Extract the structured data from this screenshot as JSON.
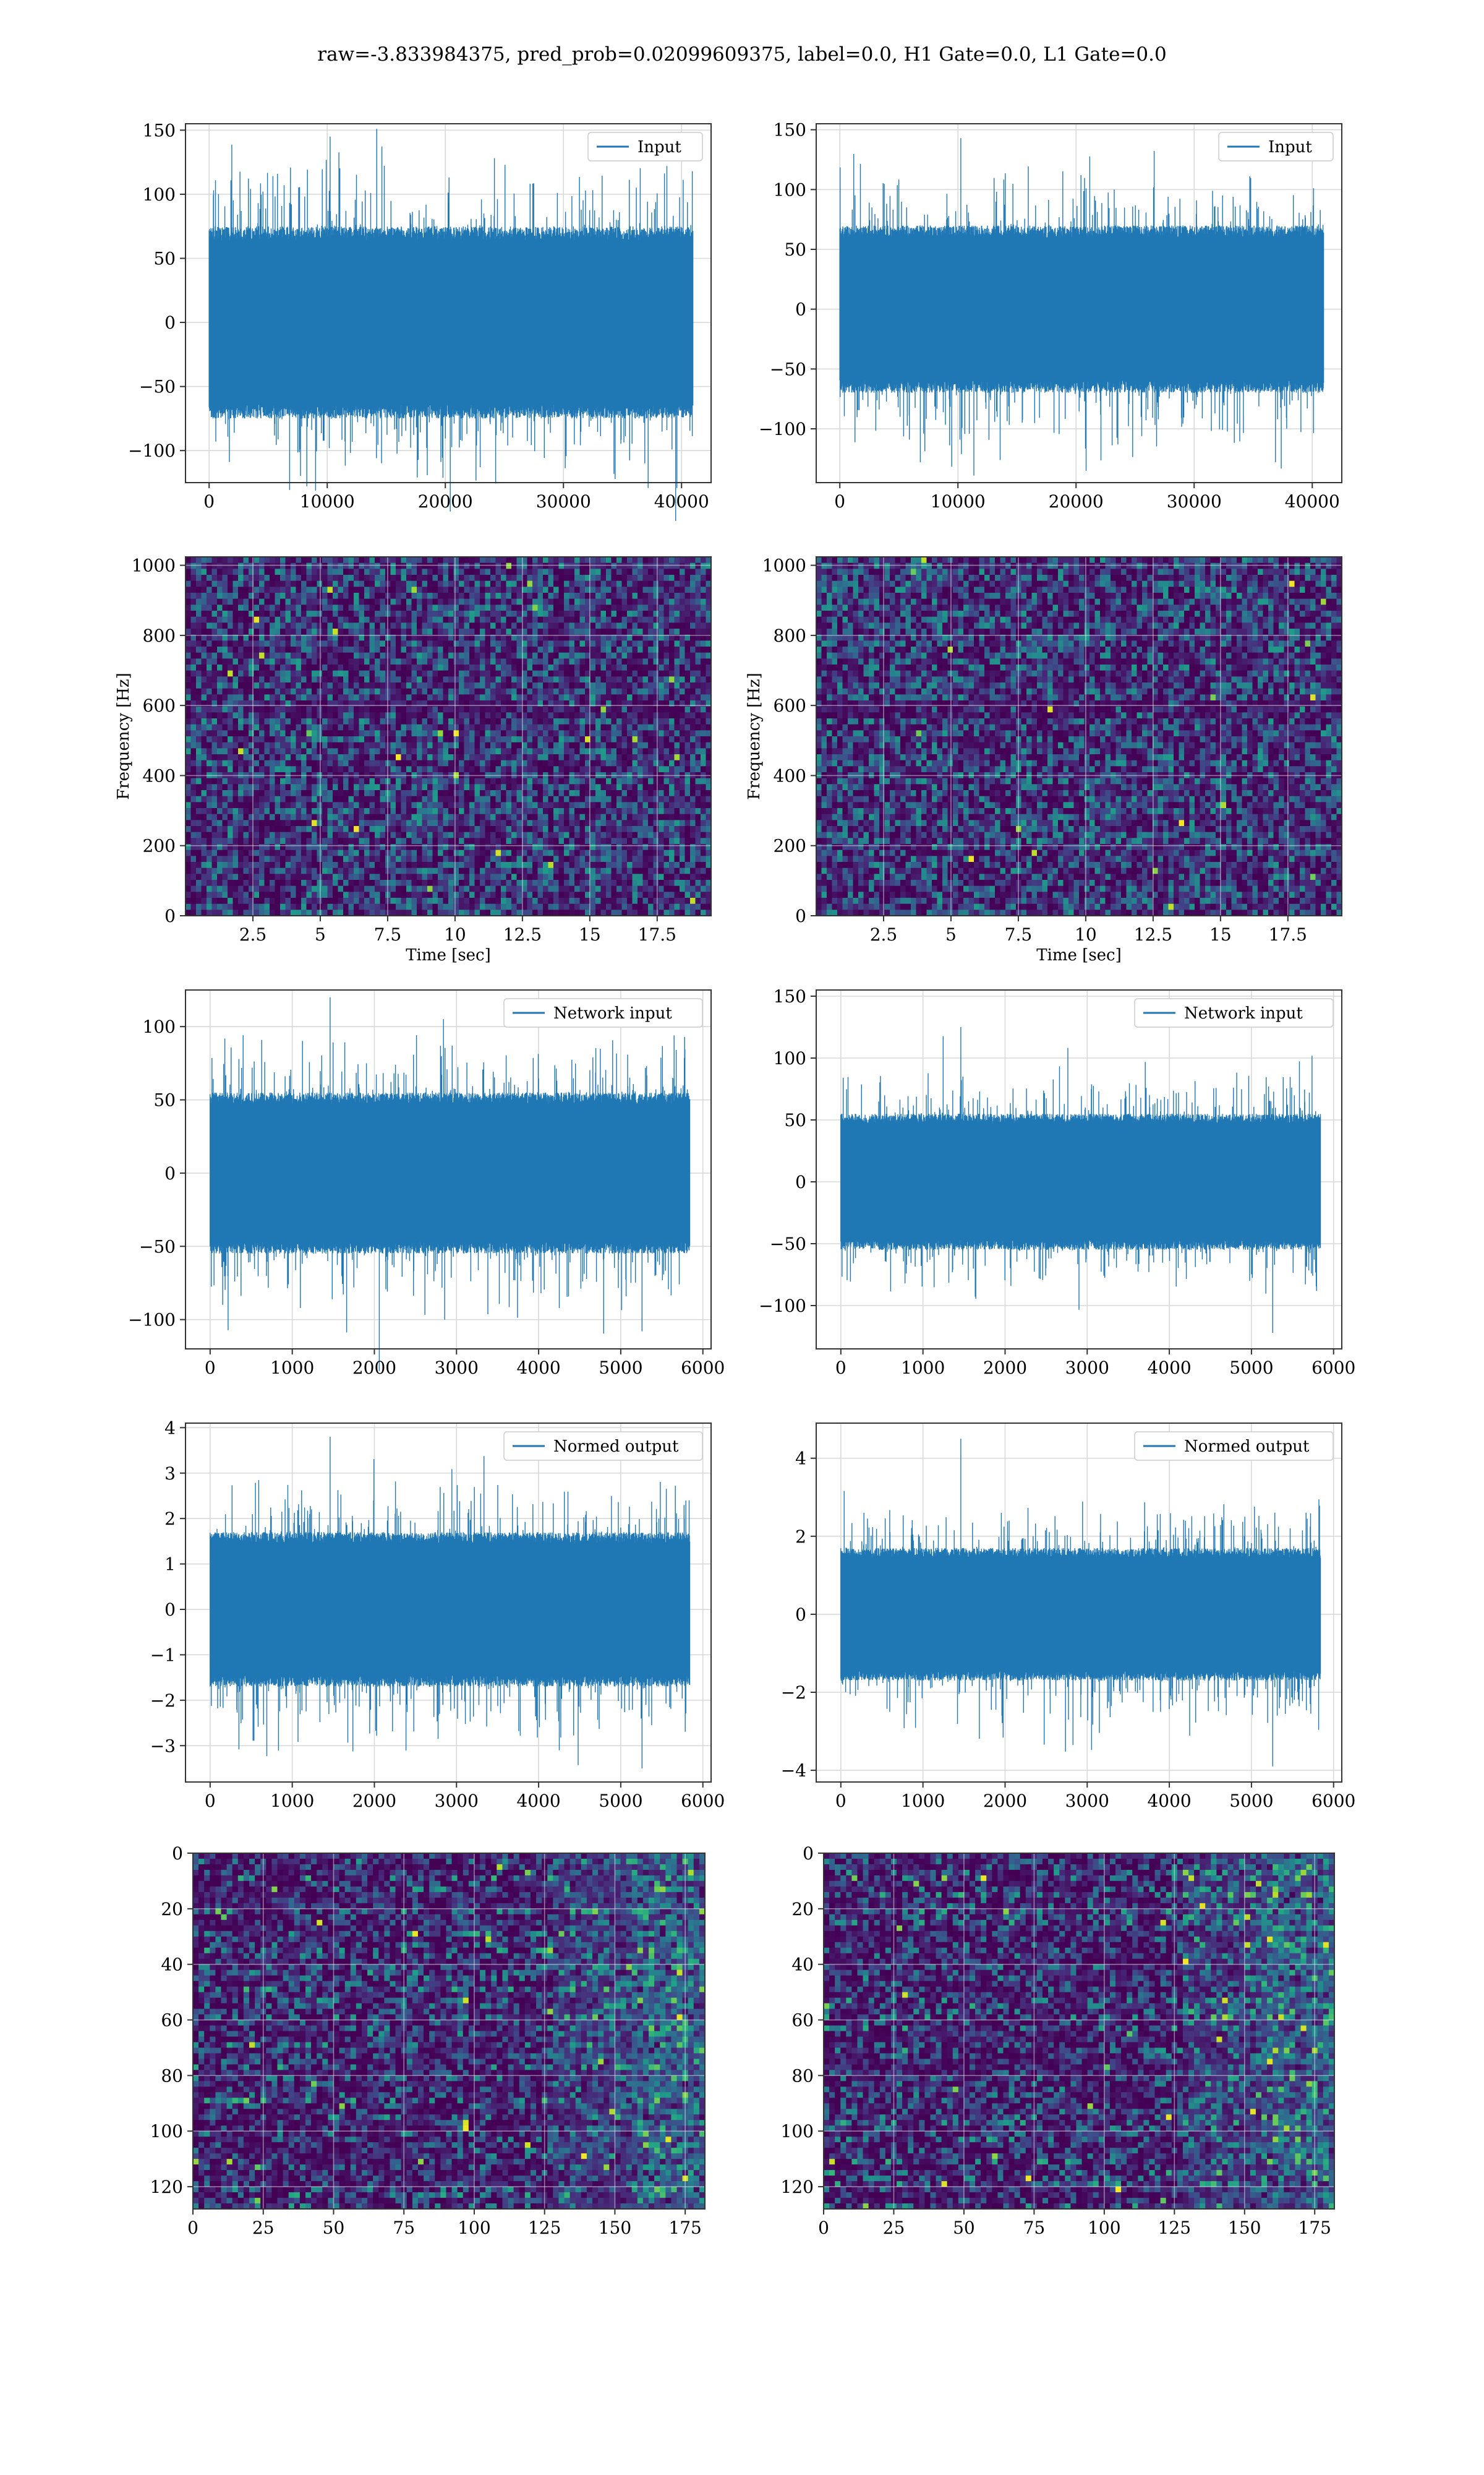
{
  "figure": {
    "title": "raw=-3.833984375, pred_prob=0.02099609375, label=0.0, H1 Gate=0.0, L1 Gate=0.0",
    "colors": {
      "series": "#1f77b4",
      "grid": "#d9d9d9",
      "axis": "#333333"
    }
  },
  "chart_data": [
    {
      "type": "line",
      "row": 1,
      "col": 1,
      "xlim": [
        -2000,
        42500
      ],
      "ylim": [
        -125,
        155
      ],
      "xticks": [
        0,
        10000,
        20000,
        30000,
        40000
      ],
      "yticks": [
        -100,
        -50,
        0,
        50,
        100,
        150
      ],
      "legend": "Input",
      "legend_loc": "upper right",
      "n": 40960,
      "band": [
        -75,
        75
      ],
      "peaks": [
        145,
        -110
      ],
      "xlabel": "",
      "ylabel": ""
    },
    {
      "type": "line",
      "row": 1,
      "col": 2,
      "xlim": [
        -2000,
        42500
      ],
      "ylim": [
        -145,
        155
      ],
      "xticks": [
        0,
        10000,
        20000,
        30000,
        40000
      ],
      "yticks": [
        -100,
        -50,
        0,
        50,
        100,
        150
      ],
      "legend": "Input",
      "legend_loc": "upper right",
      "n": 40960,
      "band": [
        -70,
        70
      ],
      "peaks": [
        143,
        -128
      ],
      "xlabel": "",
      "ylabel": ""
    },
    {
      "type": "heatmap",
      "row": 2,
      "col": 1,
      "xlim": [
        0,
        19.5
      ],
      "ylim": [
        0,
        1024
      ],
      "xticks": [
        2.5,
        5.0,
        7.5,
        10.0,
        12.5,
        15.0,
        17.5
      ],
      "yticks": [
        0,
        200,
        400,
        600,
        800,
        1000
      ],
      "xlabel": "Time [sec]",
      "ylabel": "Frequency [Hz]",
      "colormap": "viridis"
    },
    {
      "type": "heatmap",
      "row": 2,
      "col": 2,
      "xlim": [
        0,
        19.5
      ],
      "ylim": [
        0,
        1024
      ],
      "xticks": [
        2.5,
        5.0,
        7.5,
        10.0,
        12.5,
        15.0,
        17.5
      ],
      "yticks": [
        0,
        200,
        400,
        600,
        800,
        1000
      ],
      "xlabel": "Time [sec]",
      "ylabel": "Frequency [Hz]",
      "colormap": "viridis"
    },
    {
      "type": "line",
      "row": 3,
      "col": 1,
      "xlim": [
        -300,
        6100
      ],
      "ylim": [
        -120,
        125
      ],
      "xticks": [
        0,
        1000,
        2000,
        3000,
        4000,
        5000,
        6000
      ],
      "yticks": [
        -100,
        -50,
        0,
        50,
        100
      ],
      "legend": "Network input",
      "legend_loc": "upper right",
      "n": 5840,
      "band": [
        -55,
        55
      ],
      "peaks": [
        120,
        -108
      ],
      "xlabel": "",
      "ylabel": ""
    },
    {
      "type": "line",
      "row": 3,
      "col": 2,
      "xlim": [
        -300,
        6100
      ],
      "ylim": [
        -135,
        155
      ],
      "xticks": [
        0,
        1000,
        2000,
        3000,
        4000,
        5000,
        6000
      ],
      "yticks": [
        -100,
        -50,
        0,
        50,
        100,
        150
      ],
      "legend": "Network input",
      "legend_loc": "upper right",
      "n": 5840,
      "band": [
        -55,
        55
      ],
      "peaks": [
        125,
        -122
      ],
      "xlabel": "",
      "ylabel": ""
    },
    {
      "type": "line",
      "row": 4,
      "col": 1,
      "xlim": [
        -300,
        6100
      ],
      "ylim": [
        -3.8,
        4.1
      ],
      "xticks": [
        0,
        1000,
        2000,
        3000,
        4000,
        5000,
        6000
      ],
      "yticks": [
        -3,
        -2,
        -1,
        0,
        1,
        2,
        3,
        4
      ],
      "legend": "Normed output",
      "legend_loc": "upper right",
      "n": 5840,
      "band": [
        -1.7,
        1.7
      ],
      "peaks": [
        3.8,
        -3.5
      ],
      "xlabel": "",
      "ylabel": ""
    },
    {
      "type": "line",
      "row": 4,
      "col": 2,
      "xlim": [
        -300,
        6100
      ],
      "ylim": [
        -4.3,
        4.9
      ],
      "xticks": [
        0,
        1000,
        2000,
        3000,
        4000,
        5000,
        6000
      ],
      "yticks": [
        -4,
        -2,
        0,
        2,
        4
      ],
      "legend": "Normed output",
      "legend_loc": "upper right",
      "n": 5840,
      "band": [
        -1.7,
        1.7
      ],
      "peaks": [
        4.5,
        -3.9
      ],
      "xlabel": "",
      "ylabel": ""
    },
    {
      "type": "heatmap",
      "row": 5,
      "col": 1,
      "xlim": [
        0,
        182
      ],
      "ylim": [
        128,
        0
      ],
      "xticks": [
        0,
        25,
        50,
        75,
        100,
        125,
        150,
        175
      ],
      "yticks": [
        0,
        20,
        40,
        60,
        80,
        100,
        120
      ],
      "xlabel": "",
      "ylabel": "",
      "colormap": "viridis"
    },
    {
      "type": "heatmap",
      "row": 5,
      "col": 2,
      "xlim": [
        0,
        182
      ],
      "ylim": [
        128,
        0
      ],
      "xticks": [
        0,
        25,
        50,
        75,
        100,
        125,
        150,
        175
      ],
      "yticks": [
        0,
        20,
        40,
        60,
        80,
        100,
        120
      ],
      "xlabel": "",
      "ylabel": "",
      "colormap": "viridis"
    }
  ]
}
